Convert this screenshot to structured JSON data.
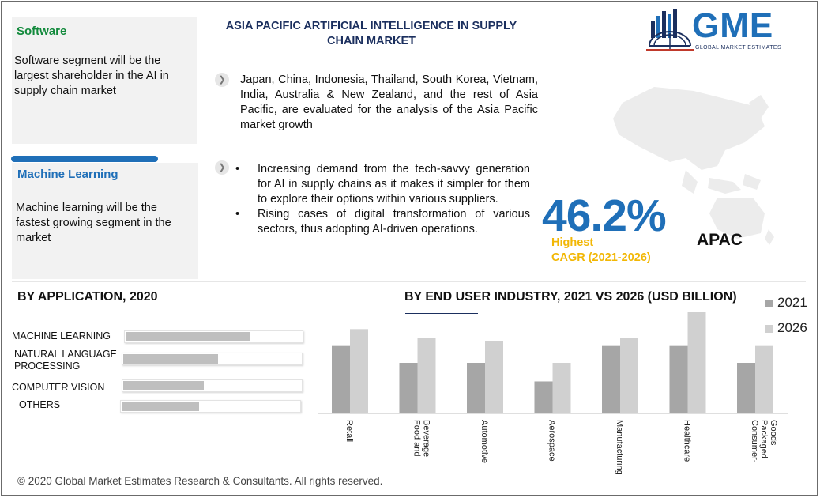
{
  "title": "ASIA PACIFIC ARTIFICIAL INTELLIGENCE IN SUPPLY CHAIN MARKET",
  "cards": [
    {
      "title": "Software",
      "text": "Software segment will be the largest shareholder in the AI in supply chain market",
      "bar_color": "#1db954"
    },
    {
      "title": "Machine Learning",
      "text": "Machine learning will be the fastest growing segment in the market",
      "bar_color": "#1f6fb8"
    }
  ],
  "countries_text": "Japan, China, Indonesia, Thailand, South Korea, Vietnam, India, Australia & New Zealand, and the rest of Asia Pacific, are evaluated for the analysis of the Asia Pacific market  growth",
  "drivers": [
    "Increasing demand from the tech-savvy generation for AI in supply chains as it makes it simpler for them to explore their options within various suppliers.",
    "Rising cases of digital transformation of various sectors, thus adopting AI-driven operations."
  ],
  "logo": {
    "word": "GME",
    "subtitle": "GLOBAL MARKET ESTIMATES"
  },
  "cagr": {
    "value": "46.2%",
    "label_line1": "Highest",
    "label_line2": "CAGR (2021-2026)",
    "region": "APAC"
  },
  "by_application": {
    "title": "BY APPLICATION, 2020",
    "items": [
      {
        "label": "MACHINE LEARNING",
        "share": 0.7
      },
      {
        "label": "NATURAL LANGUAGE PROCESSING",
        "share": 0.53
      },
      {
        "label": "COMPUTER VISION",
        "share": 0.45
      },
      {
        "label": "OTHERS",
        "share": 0.43
      }
    ]
  },
  "by_end_user": {
    "title": "BY END USER INDUSTRY, 2021 VS 2026 (USD BILLION)"
  },
  "chart_data": {
    "type": "bar",
    "categories": [
      "Retail",
      "Food and Beverage",
      "Automotive",
      "Aerospace",
      "Manufacturing",
      "Healthcare",
      "Consumer-Packaged Goods"
    ],
    "series": [
      {
        "name": "2021",
        "values": [
          4.0,
          3.0,
          3.0,
          1.9,
          4.0,
          4.0,
          3.0
        ],
        "color": "#a6a6a6"
      },
      {
        "name": "2026",
        "values": [
          5.0,
          4.5,
          4.3,
          3.0,
          4.5,
          6.0,
          4.0
        ],
        "color": "#d0d0d0"
      }
    ],
    "ylim": [
      0,
      6
    ]
  },
  "footer": "© 2020 Global Market Estimates Research & Consultants. All rights reserved."
}
